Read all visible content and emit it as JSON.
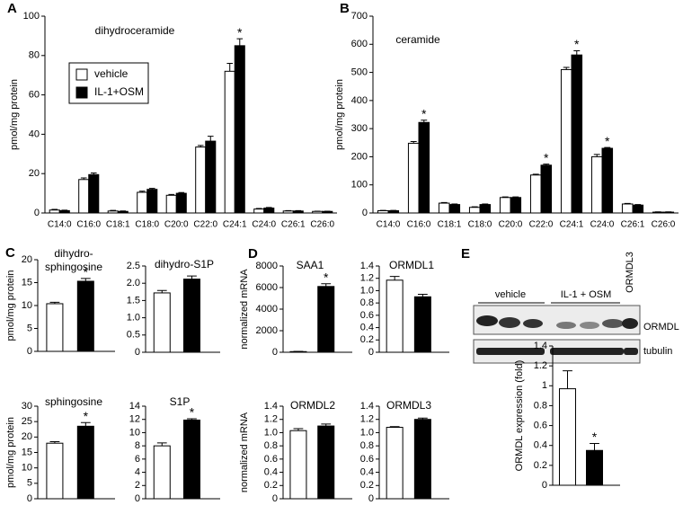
{
  "chart_data": [
    {
      "type": "bar",
      "panel": "A",
      "title": "dihydroceramide",
      "ylabel": "pmol/mg protein",
      "categories": [
        "C14:0",
        "C16:0",
        "C18:1",
        "C18:0",
        "C20:0",
        "C22:0",
        "C24:1",
        "C24:0",
        "C26:1",
        "C26:0"
      ],
      "series": [
        {
          "name": "vehicle",
          "color": "#ffffff",
          "values": [
            1.5,
            17,
            1,
            10.5,
            9,
            33.5,
            72,
            2,
            1,
            0.8
          ],
          "errors": [
            0.3,
            0.8,
            0.3,
            0.6,
            0.4,
            0.8,
            4,
            0.3,
            0.2,
            0.1
          ]
        },
        {
          "name": "IL-1+OSM",
          "color": "#000000",
          "values": [
            1.2,
            19.5,
            0.8,
            12,
            10,
            36.5,
            85,
            2.5,
            1,
            0.8
          ],
          "errors": [
            0.2,
            0.8,
            0.2,
            0.5,
            0.4,
            2.5,
            3.5,
            0.3,
            0.2,
            0.1
          ],
          "annotations": [
            null,
            null,
            null,
            null,
            null,
            null,
            "*",
            null,
            null,
            null
          ]
        }
      ],
      "ylim": [
        0,
        100
      ],
      "yticks": [
        0,
        20,
        40,
        60,
        80,
        100
      ],
      "legend": "upper left"
    },
    {
      "type": "bar",
      "panel": "B",
      "title": "ceramide",
      "ylabel": "pmol/mg protein",
      "categories": [
        "C14:0",
        "C16:0",
        "C18:1",
        "C18:0",
        "C20:0",
        "C22:0",
        "C24:1",
        "C24:0",
        "C26:1",
        "C26:0"
      ],
      "series": [
        {
          "color": "#ffffff",
          "values": [
            8,
            248,
            35,
            20,
            55,
            135,
            510,
            200,
            32,
            3
          ],
          "errors": [
            1,
            6,
            2,
            2,
            2,
            3,
            8,
            8,
            2,
            1
          ]
        },
        {
          "color": "#000000",
          "values": [
            8,
            322,
            30,
            30,
            55,
            170,
            562,
            230,
            28,
            3
          ],
          "errors": [
            1,
            8,
            2,
            2,
            2,
            4,
            15,
            3,
            2,
            1
          ],
          "annotations": [
            null,
            "*",
            null,
            null,
            null,
            "*",
            "*",
            "*",
            null,
            null
          ]
        }
      ],
      "ylim": [
        0,
        700
      ],
      "yticks": [
        0,
        100,
        200,
        300,
        400,
        500,
        600,
        700
      ]
    },
    {
      "type": "bar",
      "panel": "C",
      "title": [
        "dihydro-",
        "sphingosine"
      ],
      "ylabel": "pmol/mg  protein",
      "series": [
        {
          "color": "#ffffff",
          "values": [
            10.4
          ],
          "errors": [
            0.3
          ]
        },
        {
          "color": "#000000",
          "values": [
            15.3
          ],
          "errors": [
            0.6
          ],
          "annotations": [
            "*"
          ]
        }
      ],
      "ylim": [
        0,
        20
      ],
      "yticks": [
        0,
        5,
        10,
        15,
        20
      ]
    },
    {
      "type": "bar",
      "title": "dihydro-S1P",
      "series": [
        {
          "color": "#ffffff",
          "values": [
            1.72
          ],
          "errors": [
            0.07
          ]
        },
        {
          "color": "#000000",
          "values": [
            2.12
          ],
          "errors": [
            0.09
          ]
        }
      ],
      "ylim": [
        0,
        2.5
      ],
      "yticks": [
        0,
        0.5,
        {
          "value": 1,
          "label": "1.0"
        },
        1.5,
        {
          "value": 2,
          "label": "2.0"
        },
        2.5
      ]
    },
    {
      "type": "bar",
      "title": "sphingosine",
      "ylabel": "pmol/mg protein",
      "series": [
        {
          "color": "#ffffff",
          "values": [
            18
          ],
          "errors": [
            0.5
          ]
        },
        {
          "color": "#000000",
          "values": [
            23.5
          ],
          "errors": [
            1.2
          ],
          "annotations": [
            "*"
          ]
        }
      ],
      "ylim": [
        0,
        30
      ],
      "yticks": [
        0,
        5,
        10,
        15,
        20,
        25,
        30
      ]
    },
    {
      "type": "bar",
      "title": "S1P",
      "series": [
        {
          "color": "#ffffff",
          "values": [
            8
          ],
          "errors": [
            0.45
          ]
        },
        {
          "color": "#000000",
          "values": [
            11.9
          ],
          "errors": [
            0.2
          ],
          "annotations": [
            "*"
          ]
        }
      ],
      "ylim": [
        0,
        14
      ],
      "yticks": [
        0,
        2,
        4,
        6,
        8,
        10,
        12,
        14
      ]
    },
    {
      "type": "bar",
      "panel": "D",
      "title": "SAA1",
      "ylabel": "normalized mRNA",
      "series": [
        {
          "color": "#ffffff",
          "values": [
            60
          ],
          "errors": [
            20
          ]
        },
        {
          "color": "#000000",
          "values": [
            6100
          ],
          "errors": [
            250
          ],
          "annotations": [
            "*"
          ]
        }
      ],
      "ylim": [
        0,
        8000
      ],
      "yticks": [
        0,
        2000,
        4000,
        6000,
        8000
      ]
    },
    {
      "type": "bar",
      "title": "ORMDL1",
      "series": [
        {
          "color": "#ffffff",
          "values": [
            1.17
          ],
          "errors": [
            0.06
          ]
        },
        {
          "color": "#000000",
          "values": [
            0.9
          ],
          "errors": [
            0.04
          ]
        }
      ],
      "ylim": [
        0,
        1.4
      ],
      "yticks": [
        0,
        0.2,
        0.4,
        0.6,
        0.8,
        {
          "value": 1,
          "label": "1.0"
        },
        1.2,
        1.4
      ]
    },
    {
      "type": "bar",
      "title": "ORMDL2",
      "ylabel": "normalized mRNA",
      "series": [
        {
          "color": "#ffffff",
          "values": [
            1.03
          ],
          "errors": [
            0.03
          ]
        },
        {
          "color": "#000000",
          "values": [
            1.1
          ],
          "errors": [
            0.03
          ]
        }
      ],
      "ylim": [
        0,
        1.4
      ],
      "yticks": [
        0,
        0.2,
        0.4,
        0.6,
        0.8,
        {
          "value": 1,
          "label": "1.0"
        },
        1.2,
        1.4
      ]
    },
    {
      "type": "bar",
      "title": "ORMDL3",
      "series": [
        {
          "color": "#ffffff",
          "values": [
            1.08
          ],
          "errors": [
            0.01
          ]
        },
        {
          "color": "#000000",
          "values": [
            1.2
          ],
          "errors": [
            0.02
          ]
        }
      ],
      "ylim": [
        0,
        1.4
      ],
      "yticks": [
        0,
        0.2,
        0.4,
        0.6,
        0.8,
        {
          "value": 1,
          "label": "1.0"
        },
        1.2,
        1.4
      ]
    },
    {
      "type": "bar",
      "panel": "E",
      "ylabel": "ORMDL expression (fold)",
      "series": [
        {
          "color": "#ffffff",
          "values": [
            0.97
          ],
          "errors": [
            0.18
          ]
        },
        {
          "color": "#000000",
          "values": [
            0.35
          ],
          "errors": [
            0.07
          ],
          "annotations": [
            "*"
          ]
        }
      ],
      "ylim": [
        0,
        1.4
      ],
      "yticks": [
        0,
        0.2,
        0.4,
        0.6,
        0.8,
        1,
        1.2,
        1.4
      ]
    }
  ],
  "blot": {
    "group_labels": [
      "vehicle",
      "IL-1 + OSM",
      "ORMDL3"
    ],
    "band_labels": [
      "ORMDL",
      "tubulin"
    ]
  }
}
